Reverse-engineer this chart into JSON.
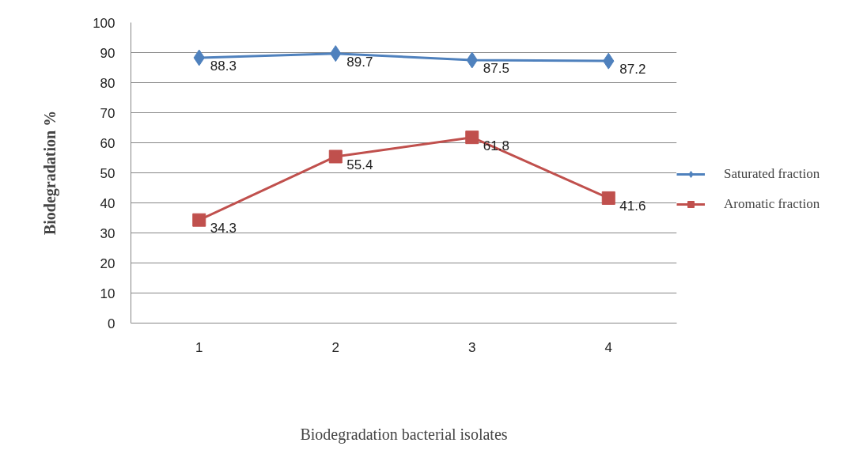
{
  "chart_data": {
    "type": "line",
    "categories": [
      "1",
      "2",
      "3",
      "4"
    ],
    "xlabel": "Biodegradation bacterial isolates",
    "ylabel": "Biodegradation %",
    "ylim": [
      0,
      100
    ],
    "yticks": [
      0,
      10,
      20,
      30,
      40,
      50,
      60,
      70,
      80,
      90,
      100
    ],
    "grid": "y",
    "legend": "right",
    "data_labels": true,
    "series": [
      {
        "name": "Saturated fraction",
        "color": "#4f81bd",
        "marker": "diamond",
        "values": [
          88.3,
          89.7,
          87.5,
          87.2
        ]
      },
      {
        "name": "Aromatic fraction",
        "color": "#c0504d",
        "marker": "square",
        "values": [
          34.3,
          55.4,
          61.8,
          41.6
        ]
      }
    ]
  }
}
